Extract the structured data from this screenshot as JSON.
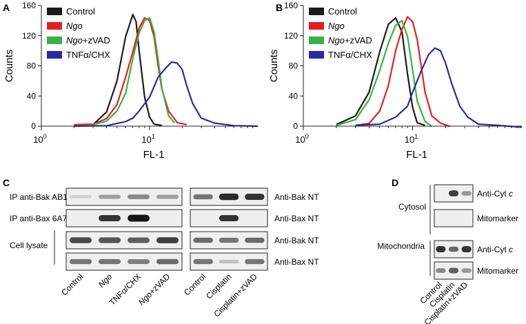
{
  "panels": {
    "A": {
      "letter": "A"
    },
    "B": {
      "letter": "B"
    },
    "C": {
      "letter": "C"
    },
    "D": {
      "letter": "D"
    }
  },
  "colors": {
    "control": "#1a1a1a",
    "ngo": "#e02020",
    "ngo_zvad": "#3cb043",
    "tnf": "#2a2aa0"
  },
  "chart_data": [
    {
      "panel": "A",
      "type": "line",
      "xlabel": "FL-1",
      "ylabel": "Counts",
      "xscale": "log",
      "xlim": [
        1,
        100
      ],
      "ylim": [
        0,
        160
      ],
      "xticks": [
        {
          "value": 1,
          "base": "10",
          "exp": "0"
        },
        {
          "value": 10,
          "base": "10",
          "exp": "1"
        }
      ],
      "yticks": [
        0,
        40,
        80,
        120,
        160
      ],
      "legend": "top-left",
      "series": [
        {
          "name_parts": [
            {
              "t": "Control",
              "i": false
            }
          ],
          "color": "#1a1a1a",
          "x": [
            3,
            4,
            5,
            6,
            7,
            7.5,
            8,
            9,
            10,
            11,
            13
          ],
          "y": [
            2,
            20,
            60,
            120,
            148,
            140,
            100,
            40,
            12,
            4,
            1
          ]
        },
        {
          "name_parts": [
            {
              "t": "Ngo",
              "i": true
            }
          ],
          "color": "#e02020",
          "x": [
            2,
            3,
            4,
            5,
            6,
            7,
            8,
            9,
            10,
            11,
            12,
            13,
            15,
            18,
            22
          ],
          "y": [
            2,
            4,
            10,
            30,
            65,
            100,
            130,
            145,
            140,
            120,
            80,
            50,
            20,
            6,
            2
          ]
        },
        {
          "name_parts": [
            {
              "t": "Ngo",
              "i": true
            },
            {
              "t": "+zVAD",
              "i": false
            }
          ],
          "color": "#3cb043",
          "x": [
            3,
            4,
            5,
            6,
            7,
            8,
            9,
            10,
            11,
            12,
            13,
            15,
            17
          ],
          "y": [
            2,
            8,
            20,
            45,
            90,
            125,
            140,
            145,
            125,
            90,
            50,
            15,
            4
          ]
        },
        {
          "name_parts": [
            {
              "t": "TNFα/CHX",
              "i": false
            }
          ],
          "color": "#2a2aa0",
          "x": [
            2,
            4,
            6,
            7,
            8,
            10,
            12,
            14,
            16,
            18,
            20,
            22,
            25,
            30,
            40,
            60,
            100
          ],
          "y": [
            0,
            2,
            6,
            12,
            20,
            40,
            65,
            78,
            85,
            85,
            75,
            55,
            30,
            12,
            4,
            2,
            0
          ]
        }
      ]
    },
    {
      "panel": "B",
      "type": "line",
      "xlabel": "FL-1",
      "ylabel": "Counts",
      "xscale": "log",
      "xlim": [
        1,
        100
      ],
      "ylim": [
        0,
        160
      ],
      "xticks": [
        {
          "value": 1,
          "base": "10",
          "exp": "0"
        },
        {
          "value": 10,
          "base": "10",
          "exp": "1"
        }
      ],
      "yticks": [
        0,
        40,
        80,
        120,
        160
      ],
      "legend": "top-left",
      "series": [
        {
          "name_parts": [
            {
              "t": "Control",
              "i": false
            }
          ],
          "color": "#1a1a1a",
          "x": [
            2,
            3,
            4,
            5,
            6,
            7,
            8,
            9,
            10,
            11,
            13
          ],
          "y": [
            2,
            15,
            45,
            100,
            135,
            145,
            125,
            70,
            25,
            6,
            1
          ]
        },
        {
          "name_parts": [
            {
              "t": "Ngo",
              "i": true
            }
          ],
          "color": "#e02020",
          "x": [
            3,
            4,
            5,
            6,
            7,
            8,
            9,
            10,
            11,
            12,
            13,
            15,
            18,
            22
          ],
          "y": [
            1,
            5,
            20,
            55,
            100,
            130,
            145,
            140,
            115,
            80,
            45,
            15,
            4,
            1
          ]
        },
        {
          "name_parts": [
            {
              "t": "Ngo",
              "i": true
            },
            {
              "t": "+zVAD",
              "i": false
            }
          ],
          "color": "#3cb043",
          "x": [
            2,
            3,
            4,
            5,
            6,
            7,
            8,
            9,
            10,
            11,
            13,
            15
          ],
          "y": [
            1,
            10,
            35,
            75,
            110,
            135,
            140,
            120,
            75,
            35,
            6,
            1
          ]
        },
        {
          "name_parts": [
            {
              "t": "TNFα/CHX",
              "i": false
            }
          ],
          "color": "#2a2aa0",
          "x": [
            3,
            5,
            7,
            9,
            10,
            12,
            14,
            16,
            18,
            20,
            23,
            27,
            32,
            40,
            60,
            100
          ],
          "y": [
            1,
            4,
            12,
            28,
            45,
            75,
            95,
            105,
            100,
            85,
            55,
            28,
            12,
            4,
            1,
            0
          ]
        }
      ]
    }
  ],
  "blot_c": {
    "left": {
      "rows": [
        {
          "label": "IP anti-Bak AB1",
          "bands": [
            0.12,
            0.35,
            0.45,
            0.35
          ]
        },
        {
          "label": "IP anti-Bax 6A7",
          "bands": [
            0.0,
            0.85,
            1.0,
            0.0
          ]
        },
        {
          "label": "",
          "bands": [
            0.75,
            0.7,
            0.65,
            0.8
          ]
        },
        {
          "label": "",
          "bands": [
            0.55,
            0.55,
            0.5,
            0.6
          ]
        }
      ],
      "group_label": "Cell lysate",
      "lanes": [
        [
          {
            "t": "Control",
            "i": false
          }
        ],
        [
          {
            "t": "Ngo",
            "i": true
          }
        ],
        [
          {
            "t": "TNFα/CHX",
            "i": false
          }
        ],
        [
          {
            "t": "Ngo",
            "i": true
          },
          {
            "t": "+zVAD",
            "i": false
          }
        ]
      ]
    },
    "right": {
      "rows": [
        {
          "label": "Anti-Bak NT",
          "bands": [
            0.55,
            0.9,
            0.85
          ]
        },
        {
          "label": "Anti-Bax NT",
          "bands": [
            0.0,
            0.85,
            0.0
          ]
        },
        {
          "label": "Anti-Bak NT",
          "bands": [
            0.6,
            0.55,
            0.6
          ]
        },
        {
          "label": "Anti-Bax NT",
          "bands": [
            0.55,
            0.2,
            0.55
          ]
        }
      ],
      "lanes": [
        "Control",
        "Cisplatin",
        "Cisplatin+zVAD"
      ]
    }
  },
  "blot_d": {
    "groups": [
      "Cytosol",
      "Mitochondria"
    ],
    "rows": [
      {
        "label_parts": [
          {
            "t": "Anti-Cyt ",
            "i": false
          },
          {
            "t": "c",
            "i": true
          }
        ],
        "bands": [
          0.0,
          0.8,
          0.4
        ]
      },
      {
        "label_parts": [
          {
            "t": "Mitomarker",
            "i": false
          }
        ],
        "bands": [
          0.0,
          0.0,
          0.0
        ]
      },
      {
        "label_parts": [
          {
            "t": "Anti-Cyt ",
            "i": false
          },
          {
            "t": "c",
            "i": true
          }
        ],
        "bands": [
          0.85,
          0.6,
          0.85
        ]
      },
      {
        "label_parts": [
          {
            "t": "Mitomarker",
            "i": false
          }
        ],
        "bands": [
          0.45,
          0.65,
          0.4
        ]
      }
    ],
    "lanes": [
      "Control",
      "Cisplatin",
      "Cisplatin+zVAD"
    ]
  }
}
